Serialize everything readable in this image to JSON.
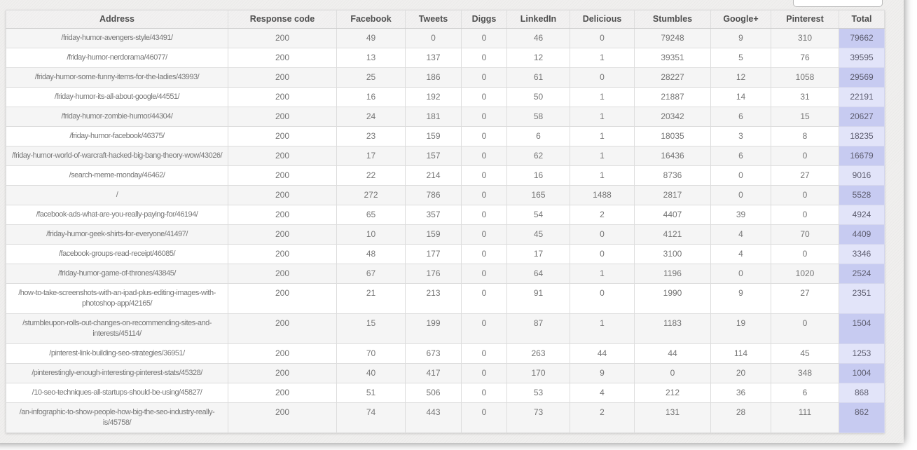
{
  "colors": {
    "page_sheet": "#f0efee",
    "row_odd": "#f5f5f5",
    "row_even": "#ffffff",
    "header_bg": "#f2f1f1",
    "total_odd": "#c7cbf1",
    "total_even": "#e2e4f9",
    "border": "#dddddd",
    "text": "#757575"
  },
  "filter_input": {
    "value": "",
    "placeholder": ""
  },
  "table": {
    "columns": [
      "Address",
      "Response code",
      "Facebook",
      "Tweets",
      "Diggs",
      "LinkedIn",
      "Delicious",
      "Stumbles",
      "Google+",
      "Pinterest",
      "Total"
    ],
    "rows": [
      {
        "cells": [
          "/friday-humor-avengers-style/43491/",
          "200",
          "49",
          "0",
          "0",
          "46",
          "0",
          "79248",
          "9",
          "310",
          "79662"
        ]
      },
      {
        "cells": [
          "/friday-humor-nerdorama/46077/",
          "200",
          "13",
          "137",
          "0",
          "12",
          "1",
          "39351",
          "5",
          "76",
          "39595"
        ]
      },
      {
        "cells": [
          "/friday-humor-some-funny-items-for-the-ladies/43993/",
          "200",
          "25",
          "186",
          "0",
          "61",
          "0",
          "28227",
          "12",
          "1058",
          "29569"
        ]
      },
      {
        "cells": [
          "/friday-humor-its-all-about-google/44551/",
          "200",
          "16",
          "192",
          "0",
          "50",
          "1",
          "21887",
          "14",
          "31",
          "22191"
        ]
      },
      {
        "cells": [
          "/friday-humor-zombie-humor/44304/",
          "200",
          "24",
          "181",
          "0",
          "58",
          "1",
          "20342",
          "6",
          "15",
          "20627"
        ]
      },
      {
        "cells": [
          "/friday-humor-facebook/46375/",
          "200",
          "23",
          "159",
          "0",
          "6",
          "1",
          "18035",
          "3",
          "8",
          "18235"
        ]
      },
      {
        "cells": [
          "/friday-humor-world-of-warcraft-hacked-big-bang-theory-wow/43026/",
          "200",
          "17",
          "157",
          "0",
          "62",
          "1",
          "16436",
          "6",
          "0",
          "16679"
        ]
      },
      {
        "cells": [
          "/search-meme-monday/46462/",
          "200",
          "22",
          "214",
          "0",
          "16",
          "1",
          "8736",
          "0",
          "27",
          "9016"
        ]
      },
      {
        "cells": [
          "/",
          "200",
          "272",
          "786",
          "0",
          "165",
          "1488",
          "2817",
          "0",
          "0",
          "5528"
        ]
      },
      {
        "cells": [
          "/facebook-ads-what-are-you-really-paying-for/46194/",
          "200",
          "65",
          "357",
          "0",
          "54",
          "2",
          "4407",
          "39",
          "0",
          "4924"
        ]
      },
      {
        "cells": [
          "/friday-humor-geek-shirts-for-everyone/41497/",
          "200",
          "10",
          "159",
          "0",
          "45",
          "0",
          "4121",
          "4",
          "70",
          "4409"
        ]
      },
      {
        "cells": [
          "/facebook-groups-read-receipt/46085/",
          "200",
          "48",
          "177",
          "0",
          "17",
          "0",
          "3100",
          "4",
          "0",
          "3346"
        ]
      },
      {
        "cells": [
          "/friday-humor-game-of-thrones/43845/",
          "200",
          "67",
          "176",
          "0",
          "64",
          "1",
          "1196",
          "0",
          "1020",
          "2524"
        ]
      },
      {
        "cells": [
          "/how-to-take-screenshots-with-an-ipad-plus-editing-images-with-photoshop-app/42165/",
          "200",
          "21",
          "213",
          "0",
          "91",
          "0",
          "1990",
          "9",
          "27",
          "2351"
        ]
      },
      {
        "cells": [
          "/stumbleupon-rolls-out-changes-on-recommending-sites-and-interests/45114/",
          "200",
          "15",
          "199",
          "0",
          "87",
          "1",
          "1183",
          "19",
          "0",
          "1504"
        ]
      },
      {
        "cells": [
          "/pinterest-link-building-seo-strategies/36951/",
          "200",
          "70",
          "673",
          "0",
          "263",
          "44",
          "44",
          "114",
          "45",
          "1253"
        ]
      },
      {
        "cells": [
          "/pinterestingly-enough-interesting-pinterest-stats/45328/",
          "200",
          "40",
          "417",
          "0",
          "170",
          "9",
          "0",
          "20",
          "348",
          "1004"
        ]
      },
      {
        "cells": [
          "/10-seo-techniques-all-startups-should-be-using/45827/",
          "200",
          "51",
          "506",
          "0",
          "53",
          "4",
          "212",
          "36",
          "6",
          "868"
        ]
      },
      {
        "cells": [
          "/an-infographic-to-show-people-how-big-the-seo-industry-really-is/45758/",
          "200",
          "74",
          "443",
          "0",
          "73",
          "2",
          "131",
          "28",
          "111",
          "862"
        ]
      }
    ]
  }
}
